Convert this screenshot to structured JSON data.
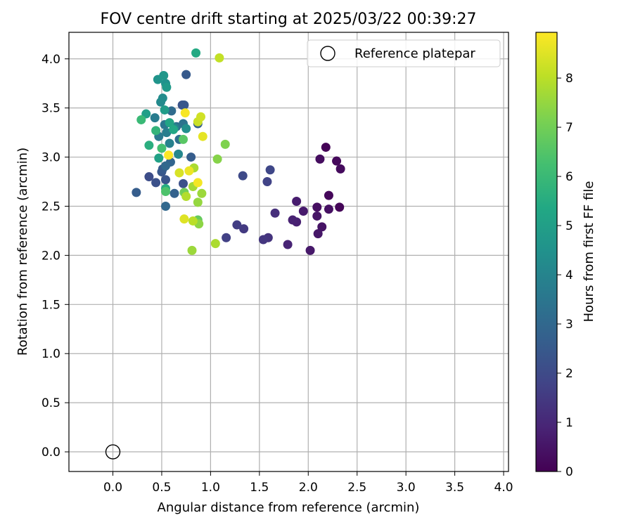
{
  "chart_data": {
    "type": "scatter",
    "title": "FOV centre drift starting at 2025/03/22 00:39:27",
    "xlabel": "Angular distance from reference (arcmin)",
    "ylabel": "Rotation from reference (arcmin)",
    "xlim": [
      -0.45,
      4.05
    ],
    "ylim": [
      -0.2,
      4.27
    ],
    "xticks": [
      "0.0",
      "0.5",
      "1.0",
      "1.5",
      "2.0",
      "2.5",
      "3.0",
      "3.5",
      "4.0"
    ],
    "yticks": [
      "0.0",
      "0.5",
      "1.0",
      "1.5",
      "2.0",
      "2.5",
      "3.0",
      "3.5",
      "4.0"
    ],
    "grid": true,
    "colormap": "viridis",
    "colorbar": {
      "label": "Hours from first FF file",
      "range": [
        0,
        8.93
      ],
      "ticks": [
        "0",
        "1",
        "2",
        "3",
        "4",
        "5",
        "6",
        "7",
        "8"
      ]
    },
    "legend": {
      "position": "top-right",
      "entries": [
        "Reference platepar"
      ]
    },
    "reference_point": {
      "x": 0.0,
      "y": 0.0
    },
    "points": [
      {
        "x": 2.18,
        "y": 3.1,
        "c": 0.05
      },
      {
        "x": 2.32,
        "y": 2.49,
        "c": 0.1
      },
      {
        "x": 2.21,
        "y": 2.61,
        "c": 0.15
      },
      {
        "x": 2.29,
        "y": 2.96,
        "c": 0.2
      },
      {
        "x": 2.33,
        "y": 2.88,
        "c": 0.25
      },
      {
        "x": 2.12,
        "y": 2.98,
        "c": 0.3
      },
      {
        "x": 2.09,
        "y": 2.49,
        "c": 0.35
      },
      {
        "x": 2.21,
        "y": 2.47,
        "c": 0.4
      },
      {
        "x": 2.14,
        "y": 2.29,
        "c": 0.45
      },
      {
        "x": 2.09,
        "y": 2.4,
        "c": 0.5
      },
      {
        "x": 2.1,
        "y": 2.22,
        "c": 0.55
      },
      {
        "x": 2.02,
        "y": 2.05,
        "c": 0.6
      },
      {
        "x": 1.95,
        "y": 2.45,
        "c": 0.65
      },
      {
        "x": 1.88,
        "y": 2.55,
        "c": 0.7
      },
      {
        "x": 1.88,
        "y": 2.34,
        "c": 0.8
      },
      {
        "x": 1.84,
        "y": 2.36,
        "c": 0.85
      },
      {
        "x": 1.79,
        "y": 2.11,
        "c": 0.9
      },
      {
        "x": 1.66,
        "y": 2.43,
        "c": 1.2
      },
      {
        "x": 1.59,
        "y": 2.18,
        "c": 1.3
      },
      {
        "x": 1.54,
        "y": 2.16,
        "c": 1.4
      },
      {
        "x": 1.34,
        "y": 2.27,
        "c": 1.5
      },
      {
        "x": 1.27,
        "y": 2.31,
        "c": 1.6
      },
      {
        "x": 1.16,
        "y": 2.18,
        "c": 1.7
      },
      {
        "x": 1.58,
        "y": 2.75,
        "c": 1.8
      },
      {
        "x": 1.61,
        "y": 2.87,
        "c": 1.9
      },
      {
        "x": 1.33,
        "y": 2.81,
        "c": 2.0
      },
      {
        "x": 0.37,
        "y": 2.8,
        "c": 2.1
      },
      {
        "x": 0.24,
        "y": 2.64,
        "c": 2.6
      },
      {
        "x": 0.44,
        "y": 2.74,
        "c": 2.2
      },
      {
        "x": 0.54,
        "y": 2.77,
        "c": 2.3
      },
      {
        "x": 0.5,
        "y": 2.85,
        "c": 2.4
      },
      {
        "x": 0.51,
        "y": 2.88,
        "c": 2.5
      },
      {
        "x": 0.54,
        "y": 2.5,
        "c": 3.0
      },
      {
        "x": 0.72,
        "y": 2.73,
        "c": 2.2
      },
      {
        "x": 0.71,
        "y": 3.53,
        "c": 2.3
      },
      {
        "x": 0.73,
        "y": 3.53,
        "c": 2.4
      },
      {
        "x": 0.75,
        "y": 3.84,
        "c": 2.5
      },
      {
        "x": 0.8,
        "y": 3.0,
        "c": 2.6
      },
      {
        "x": 0.87,
        "y": 3.34,
        "c": 2.7
      },
      {
        "x": 0.63,
        "y": 2.63,
        "c": 2.8
      },
      {
        "x": 0.59,
        "y": 2.95,
        "c": 2.9
      },
      {
        "x": 0.54,
        "y": 2.91,
        "c": 3.0
      },
      {
        "x": 0.6,
        "y": 3.47,
        "c": 3.1
      },
      {
        "x": 0.65,
        "y": 3.31,
        "c": 3.2
      },
      {
        "x": 0.68,
        "y": 3.18,
        "c": 3.3
      },
      {
        "x": 0.72,
        "y": 3.34,
        "c": 3.4
      },
      {
        "x": 0.53,
        "y": 3.33,
        "c": 3.5
      },
      {
        "x": 0.47,
        "y": 3.21,
        "c": 3.6
      },
      {
        "x": 0.43,
        "y": 3.4,
        "c": 3.7
      },
      {
        "x": 0.55,
        "y": 3.25,
        "c": 3.8
      },
      {
        "x": 0.58,
        "y": 3.14,
        "c": 3.9
      },
      {
        "x": 0.63,
        "y": 3.3,
        "c": 4.0
      },
      {
        "x": 0.67,
        "y": 3.03,
        "c": 4.1
      },
      {
        "x": 0.49,
        "y": 3.56,
        "c": 4.2
      },
      {
        "x": 0.51,
        "y": 3.6,
        "c": 4.3
      },
      {
        "x": 0.75,
        "y": 3.29,
        "c": 4.4
      },
      {
        "x": 0.54,
        "y": 3.75,
        "c": 4.5
      },
      {
        "x": 0.46,
        "y": 3.79,
        "c": 4.6
      },
      {
        "x": 0.52,
        "y": 3.83,
        "c": 4.7
      },
      {
        "x": 0.55,
        "y": 3.71,
        "c": 4.8
      },
      {
        "x": 0.53,
        "y": 3.48,
        "c": 4.9
      },
      {
        "x": 0.34,
        "y": 3.44,
        "c": 5.0
      },
      {
        "x": 0.47,
        "y": 2.99,
        "c": 5.1
      },
      {
        "x": 0.58,
        "y": 3.35,
        "c": 5.2
      },
      {
        "x": 0.62,
        "y": 3.28,
        "c": 5.3
      },
      {
        "x": 0.85,
        "y": 4.06,
        "c": 5.4
      },
      {
        "x": 0.54,
        "y": 2.68,
        "c": 5.5
      },
      {
        "x": 0.37,
        "y": 3.12,
        "c": 5.6
      },
      {
        "x": 0.44,
        "y": 3.27,
        "c": 5.8
      },
      {
        "x": 0.29,
        "y": 3.38,
        "c": 6.0
      },
      {
        "x": 0.5,
        "y": 3.09,
        "c": 6.2
      },
      {
        "x": 0.54,
        "y": 2.65,
        "c": 6.4
      },
      {
        "x": 0.72,
        "y": 3.18,
        "c": 6.6
      },
      {
        "x": 0.87,
        "y": 2.36,
        "c": 6.8
      },
      {
        "x": 0.73,
        "y": 2.64,
        "c": 7.0
      },
      {
        "x": 1.15,
        "y": 3.13,
        "c": 7.2
      },
      {
        "x": 1.07,
        "y": 2.98,
        "c": 7.3
      },
      {
        "x": 0.88,
        "y": 2.32,
        "c": 7.4
      },
      {
        "x": 0.87,
        "y": 2.54,
        "c": 7.5
      },
      {
        "x": 0.81,
        "y": 2.05,
        "c": 7.6
      },
      {
        "x": 0.91,
        "y": 2.63,
        "c": 7.6
      },
      {
        "x": 0.82,
        "y": 2.7,
        "c": 7.7
      },
      {
        "x": 0.83,
        "y": 2.89,
        "c": 7.8
      },
      {
        "x": 1.05,
        "y": 2.12,
        "c": 7.8
      },
      {
        "x": 0.75,
        "y": 2.6,
        "c": 7.9
      },
      {
        "x": 0.82,
        "y": 2.35,
        "c": 8.0
      },
      {
        "x": 1.09,
        "y": 4.01,
        "c": 8.1
      },
      {
        "x": 0.87,
        "y": 3.36,
        "c": 8.2
      },
      {
        "x": 0.9,
        "y": 3.41,
        "c": 8.3
      },
      {
        "x": 0.68,
        "y": 2.84,
        "c": 8.4
      },
      {
        "x": 0.73,
        "y": 2.37,
        "c": 8.5
      },
      {
        "x": 0.92,
        "y": 3.21,
        "c": 8.6
      },
      {
        "x": 0.78,
        "y": 2.86,
        "c": 8.7
      },
      {
        "x": 0.87,
        "y": 2.74,
        "c": 8.8
      },
      {
        "x": 0.74,
        "y": 3.45,
        "c": 8.85
      },
      {
        "x": 0.57,
        "y": 3.02,
        "c": 8.9
      }
    ]
  }
}
